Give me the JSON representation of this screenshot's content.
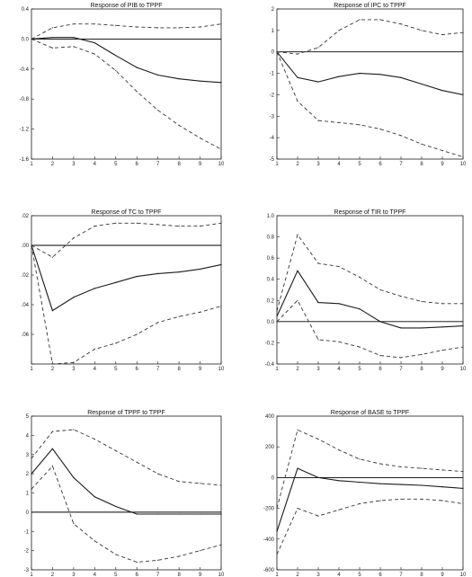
{
  "colors": {
    "ink": "#1a1a1a",
    "band": "#333333",
    "zero": "#000000",
    "background": "#ffffff"
  },
  "chart_data": [
    {
      "type": "line",
      "title": "Response of PIB to TPPF",
      "x": [
        1,
        2,
        3,
        4,
        5,
        6,
        7,
        8,
        9,
        10
      ],
      "ylim": [
        -1.6,
        0.4
      ],
      "yticks": [
        -1.6,
        -1.2,
        -0.8,
        -0.4,
        0.0,
        0.4
      ],
      "ytick_labels": [
        "-1.6",
        "-1.2",
        "-0.8",
        "-0.4",
        "0.0",
        "0.4"
      ],
      "xticks": [
        1,
        2,
        3,
        4,
        5,
        6,
        7,
        8,
        9,
        10
      ],
      "series": [
        {
          "role": "response",
          "values": [
            0.0,
            0.02,
            0.02,
            -0.05,
            -0.22,
            -0.38,
            -0.48,
            -0.53,
            -0.56,
            -0.58
          ]
        },
        {
          "role": "upper",
          "values": [
            0.0,
            0.15,
            0.2,
            0.2,
            0.18,
            0.16,
            0.15,
            0.15,
            0.16,
            0.2
          ]
        },
        {
          "role": "lower",
          "values": [
            0.0,
            -0.12,
            -0.1,
            -0.2,
            -0.42,
            -0.7,
            -0.95,
            -1.15,
            -1.32,
            -1.47
          ]
        }
      ]
    },
    {
      "type": "line",
      "title": "Response of IPC to TPPF",
      "x": [
        1,
        2,
        3,
        4,
        5,
        6,
        7,
        8,
        9,
        10
      ],
      "ylim": [
        -5,
        2
      ],
      "yticks": [
        -5,
        -4,
        -3,
        -2,
        -1,
        0,
        1,
        2
      ],
      "ytick_labels": [
        "-5",
        "-4",
        "-3",
        "-2",
        "-1",
        "0",
        "1",
        "2"
      ],
      "xticks": [
        1,
        2,
        3,
        4,
        5,
        6,
        7,
        8,
        9,
        10
      ],
      "series": [
        {
          "role": "response",
          "values": [
            0.0,
            -1.2,
            -1.4,
            -1.15,
            -1.0,
            -1.05,
            -1.2,
            -1.5,
            -1.8,
            -2.0
          ]
        },
        {
          "role": "upper",
          "values": [
            0.0,
            -0.1,
            0.2,
            1.0,
            1.5,
            1.5,
            1.3,
            1.0,
            0.8,
            0.9
          ]
        },
        {
          "role": "lower",
          "values": [
            0.0,
            -2.3,
            -3.2,
            -3.3,
            -3.4,
            -3.6,
            -3.9,
            -4.3,
            -4.6,
            -4.9
          ]
        }
      ]
    },
    {
      "type": "line",
      "title": "Response of TC to TPPF",
      "x": [
        1,
        2,
        3,
        4,
        5,
        6,
        7,
        8,
        9,
        10
      ],
      "ylim": [
        -0.08,
        0.02
      ],
      "yticks": [
        -0.08,
        -0.06,
        -0.04,
        -0.02,
        0.0,
        0.02
      ],
      "ytick_labels": [
        "",
        ".06",
        ".04",
        ".02",
        ".00",
        ".02"
      ],
      "xticks": [
        1,
        2,
        3,
        4,
        5,
        6,
        7,
        8,
        9,
        10
      ],
      "series": [
        {
          "role": "response",
          "values": [
            0.0,
            -0.044,
            -0.035,
            -0.029,
            -0.025,
            -0.021,
            -0.019,
            -0.018,
            -0.016,
            -0.013
          ]
        },
        {
          "role": "upper",
          "values": [
            0.0,
            -0.008,
            0.005,
            0.013,
            0.015,
            0.015,
            0.014,
            0.013,
            0.013,
            0.015
          ]
        },
        {
          "role": "lower",
          "values": [
            0.0,
            -0.08,
            -0.079,
            -0.07,
            -0.066,
            -0.06,
            -0.052,
            -0.048,
            -0.045,
            -0.041
          ]
        }
      ]
    },
    {
      "type": "line",
      "title": "Response of TIR to TPPF",
      "x": [
        1,
        2,
        3,
        4,
        5,
        6,
        7,
        8,
        9,
        10
      ],
      "ylim": [
        -0.4,
        1.0
      ],
      "yticks": [
        -0.4,
        -0.2,
        0.0,
        0.2,
        0.4,
        0.6,
        0.8,
        1.0
      ],
      "ytick_labels": [
        "-0.4",
        "-0.2",
        "0.0",
        "0.2",
        "0.4",
        "0.6",
        "0.8",
        "1.0"
      ],
      "xticks": [
        1,
        2,
        3,
        4,
        5,
        6,
        7,
        8,
        9,
        10
      ],
      "series": [
        {
          "role": "response",
          "values": [
            0.05,
            0.48,
            0.18,
            0.17,
            0.12,
            0.0,
            -0.06,
            -0.06,
            -0.05,
            -0.04
          ]
        },
        {
          "role": "upper",
          "values": [
            0.1,
            0.82,
            0.55,
            0.52,
            0.42,
            0.3,
            0.24,
            0.19,
            0.17,
            0.17
          ]
        },
        {
          "role": "lower",
          "values": [
            0.0,
            0.2,
            -0.17,
            -0.19,
            -0.24,
            -0.32,
            -0.34,
            -0.31,
            -0.27,
            -0.24
          ]
        }
      ]
    },
    {
      "type": "line",
      "title": "Response of TPPF to TPPF",
      "x": [
        1,
        2,
        3,
        4,
        5,
        6,
        7,
        8,
        9,
        10
      ],
      "ylim": [
        -3,
        5
      ],
      "yticks": [
        -3,
        -2,
        -1,
        0,
        1,
        2,
        3,
        4,
        5
      ],
      "ytick_labels": [
        "-3",
        "-2",
        "-1",
        "0",
        "1",
        "2",
        "3",
        "4",
        "5"
      ],
      "xticks": [
        1,
        2,
        3,
        4,
        5,
        6,
        7,
        8,
        9,
        10
      ],
      "series": [
        {
          "role": "response",
          "values": [
            2.0,
            3.3,
            1.8,
            0.8,
            0.3,
            -0.1,
            -0.1,
            -0.1,
            -0.1,
            -0.1
          ]
        },
        {
          "role": "upper",
          "values": [
            2.8,
            4.2,
            4.3,
            3.8,
            3.2,
            2.6,
            2.0,
            1.6,
            1.5,
            1.4
          ]
        },
        {
          "role": "lower",
          "values": [
            1.2,
            2.4,
            -0.6,
            -1.5,
            -2.2,
            -2.6,
            -2.5,
            -2.3,
            -2.0,
            -1.7
          ]
        }
      ]
    },
    {
      "type": "line",
      "title": "Response of BASE to TPPF",
      "x": [
        1,
        2,
        3,
        4,
        5,
        6,
        7,
        8,
        9,
        10
      ],
      "ylim": [
        -600,
        400
      ],
      "yticks": [
        -600,
        -400,
        -200,
        0,
        200,
        400
      ],
      "ytick_labels": [
        "-600",
        "-400",
        "-200",
        "0",
        "200",
        "400"
      ],
      "xticks": [
        1,
        2,
        3,
        4,
        5,
        6,
        7,
        8,
        9,
        10
      ],
      "series": [
        {
          "role": "response",
          "values": [
            -350,
            60,
            0,
            -20,
            -30,
            -40,
            -45,
            -50,
            -60,
            -70
          ]
        },
        {
          "role": "upper",
          "values": [
            -200,
            310,
            250,
            180,
            120,
            90,
            70,
            60,
            50,
            40
          ]
        },
        {
          "role": "lower",
          "values": [
            -500,
            -200,
            -250,
            -210,
            -170,
            -150,
            -140,
            -140,
            -150,
            -170
          ]
        }
      ]
    }
  ]
}
